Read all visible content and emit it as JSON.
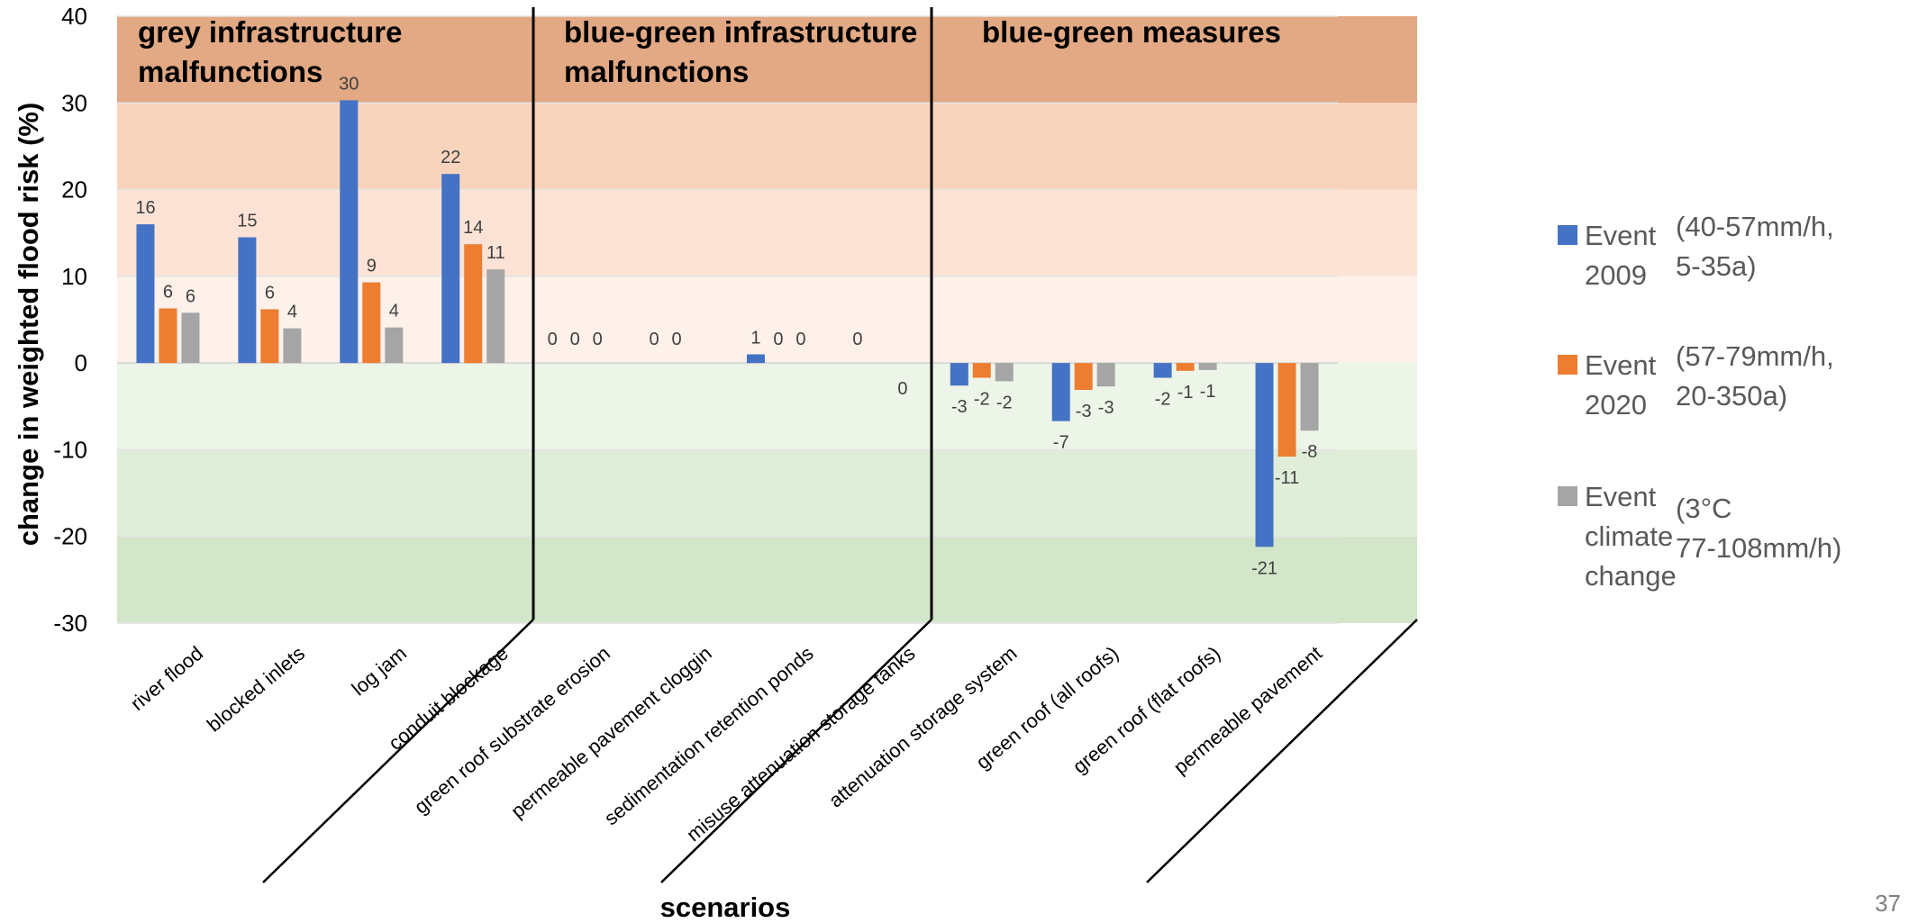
{
  "chart_data": {
    "type": "bar",
    "ylabel": "change in weighted flood risk (%)",
    "xlabel": "scenarios",
    "ylim": [
      -30,
      40
    ],
    "yticks": [
      "40",
      "30",
      "20",
      "10",
      "0",
      "-10",
      "-20",
      "-30"
    ],
    "categories": [
      "river flood",
      "blocked inlets",
      "log jam",
      "conduit blockage",
      "green roof substrate erosion",
      "permeable pavement cloggin",
      "sedimentation retention ponds",
      "misuse attenuation storage tanks",
      "attenuation storage system",
      "green roof (all roofs)",
      "green roof (flat roofs)",
      "permeable pavement"
    ],
    "groups": [
      "grey infrastructure malfunctions",
      "blue-green infrastructure malfunctions",
      "blue-green measures"
    ],
    "series": [
      {
        "values": [
          16,
          14.5,
          30.3,
          21.8,
          0,
          0,
          1,
          0,
          -2.6,
          -6.7,
          -1.7,
          -21.2
        ],
        "labels": [
          "16",
          "15",
          "30",
          "22",
          "0",
          "0",
          "1",
          "0",
          "-3",
          "-7",
          "-2",
          "-21"
        ],
        "color": "#4472C4"
      },
      {
        "values": [
          6.3,
          6.2,
          9.3,
          13.7,
          0,
          0,
          0,
          null,
          -1.7,
          -3.1,
          -0.9,
          -10.8
        ],
        "labels": [
          "6",
          "6",
          "9",
          "14",
          "0",
          "0",
          "0",
          "",
          "-2",
          "-3",
          "-1",
          "-11"
        ],
        "color": "#ED7D31"
      },
      {
        "values": [
          5.8,
          4,
          4.1,
          10.8,
          0,
          null,
          0,
          0,
          -2.1,
          -2.7,
          -0.8,
          -7.8
        ],
        "labels": [
          "6",
          "4",
          "4",
          "11",
          "0",
          "",
          "0",
          "0",
          "-2",
          "-3",
          "-1",
          "-8"
        ],
        "color": "#A5A5A5"
      }
    ],
    "legend": [
      {
        "label": "Event 2009",
        "detail": "(40-57mm/h, 5-35a)",
        "color": "#4472C4"
      },
      {
        "label": "Event 2020",
        "detail": "(57-79mm/h, 20-350a)",
        "color": "#ED7D31"
      },
      {
        "label": "Event climate change",
        "detail": "(3°C 77-108mm/h)",
        "color": "#A5A5A5"
      }
    ],
    "legend_position": "right",
    "background_bands": [
      {
        "from": 30,
        "to": 40,
        "color": "#E2A984"
      },
      {
        "from": 20,
        "to": 30,
        "color": "#F9D4BD"
      },
      {
        "from": 10,
        "to": 20,
        "color": "#FCE3D6"
      },
      {
        "from": 0,
        "to": 10,
        "color": "#FDF1EA"
      },
      {
        "from": -10,
        "to": 0,
        "color": "#EDF5E8"
      },
      {
        "from": -20,
        "to": -10,
        "color": "#E0EED9"
      },
      {
        "from": -30,
        "to": -20,
        "color": "#D3E6CA"
      }
    ],
    "grid": true
  },
  "legend_lines": [
    {
      "a": "Event",
      "b": "2009",
      "c": "(40-57mm/h,",
      "d": "5-35a)"
    },
    {
      "a": "Event",
      "b": "2020",
      "c": "(57-79mm/h,",
      "d": "20-350a)"
    },
    {
      "a": "Event",
      "b": "climate",
      "b2": "change",
      "c": "(3°C",
      "d": "77-108mm/h)"
    }
  ],
  "group_lines": [
    [
      "grey infrastructure",
      "malfunctions"
    ],
    [
      "blue-green infrastructure",
      "malfunctions"
    ],
    [
      "blue-green measures"
    ]
  ],
  "page_number": "37"
}
